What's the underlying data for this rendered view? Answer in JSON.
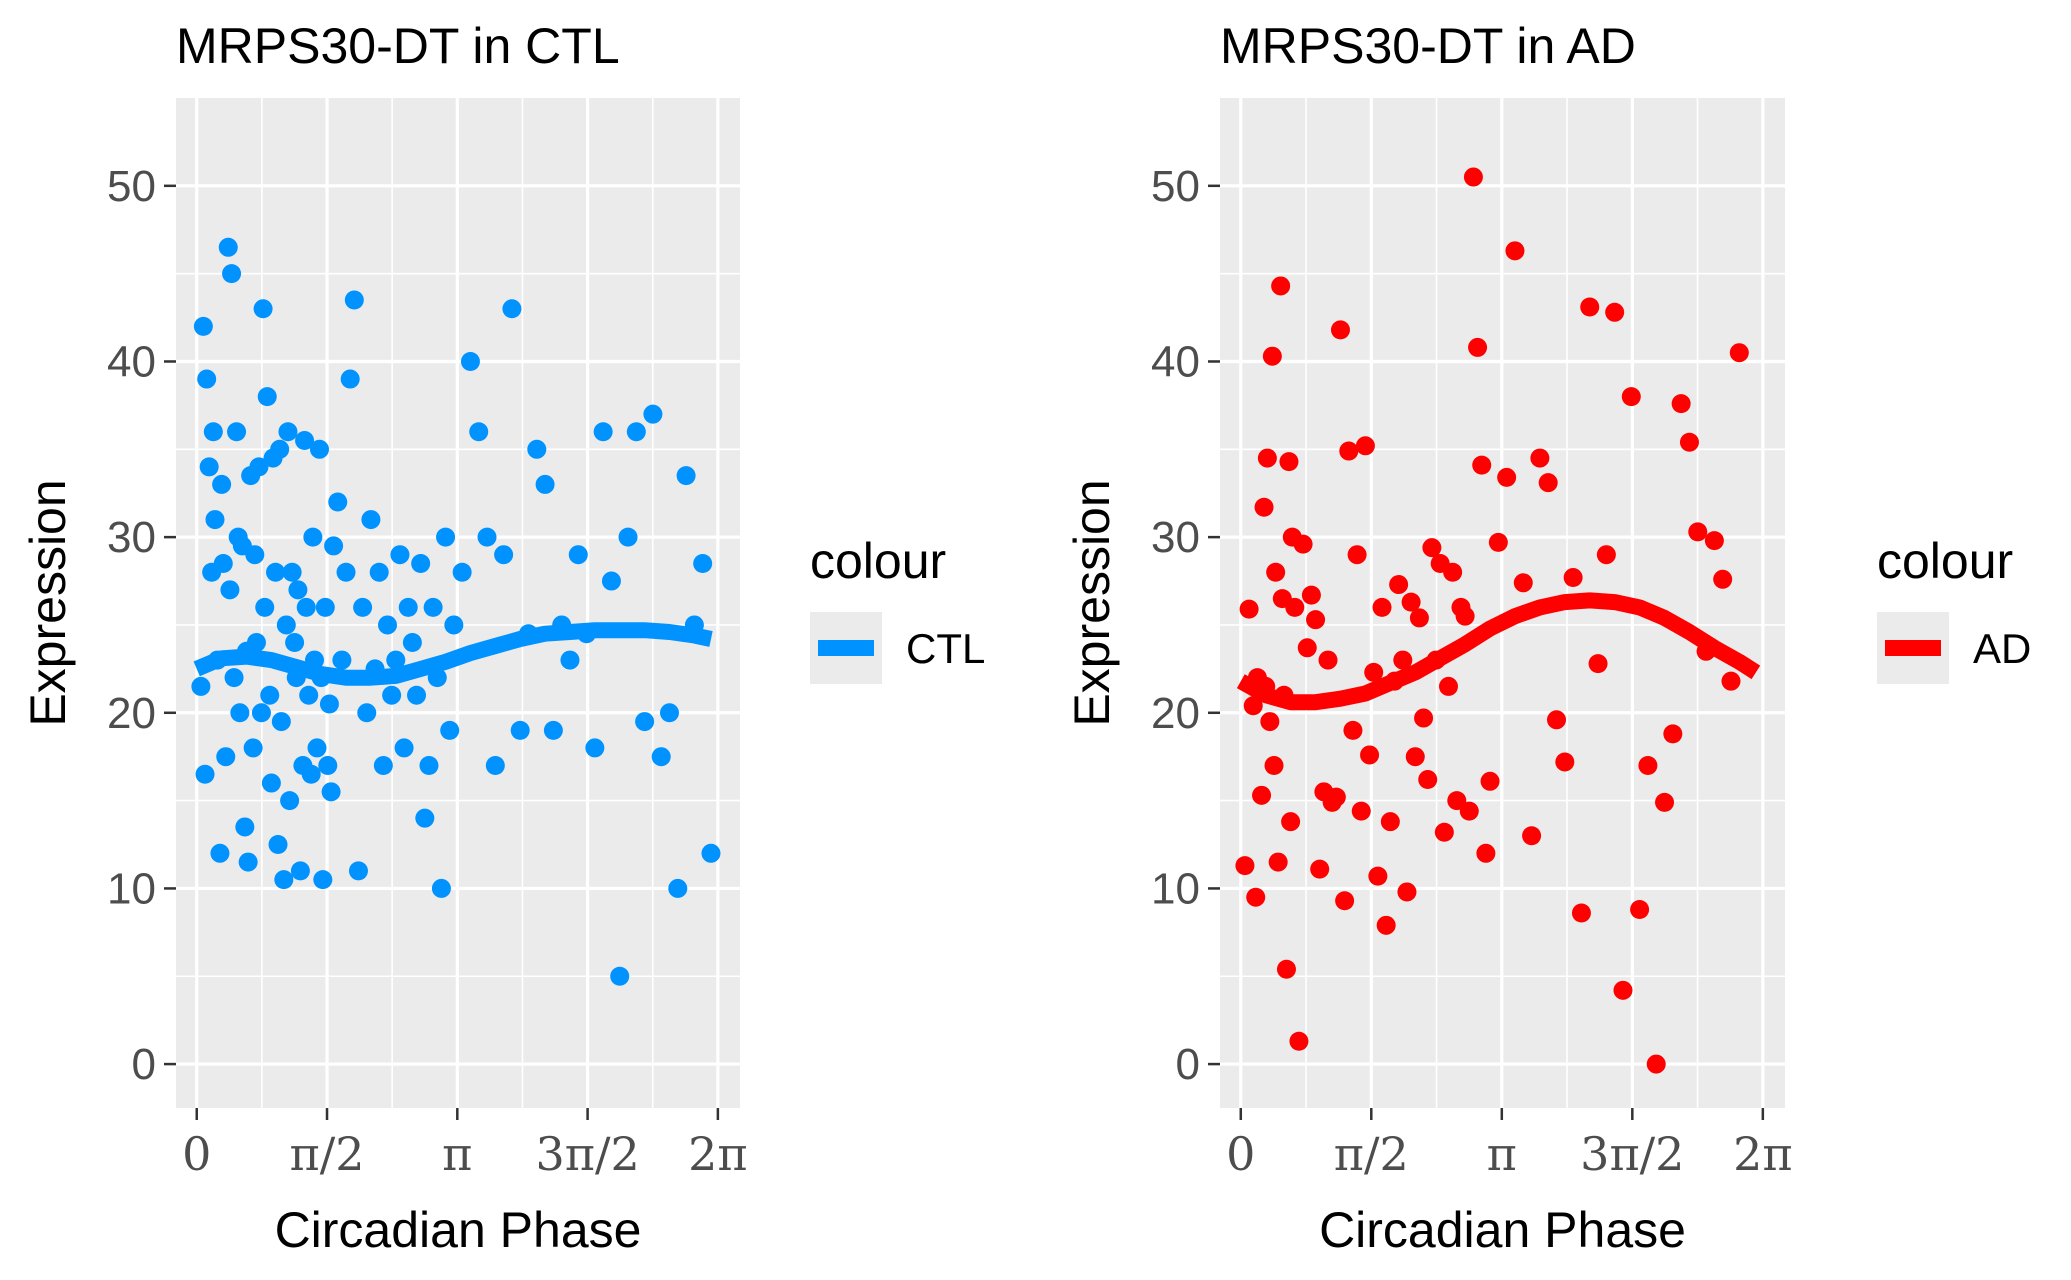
{
  "chart_data": [
    {
      "type": "scatter",
      "title": "MRPS30-DT in CTL",
      "xlabel": "Circadian Phase",
      "ylabel": "Expression",
      "x_tick_labels": [
        "0",
        "π/2",
        "π",
        "3π/2",
        "2π"
      ],
      "x_tick_values": [
        0,
        1.5708,
        3.1416,
        4.7124,
        6.2832
      ],
      "y_tick_labels": [
        "0",
        "10",
        "20",
        "30",
        "40",
        "50"
      ],
      "y_tick_values": [
        0,
        10,
        20,
        30,
        40,
        50
      ],
      "xlim": [
        -0.25,
        6.55
      ],
      "ylim": [
        -2.5,
        55.0
      ],
      "grid": true,
      "color": "#0092ff",
      "legend": {
        "title": "colour",
        "label": "CTL",
        "placement": "right"
      },
      "fit_line": {
        "x": [
          0.0,
          0.3,
          0.6,
          0.9,
          1.2,
          1.5,
          1.8,
          2.1,
          2.4,
          2.7,
          3.0,
          3.3,
          3.6,
          3.9,
          4.2,
          4.5,
          4.8,
          5.1,
          5.4,
          5.7,
          6.0,
          6.2
        ],
        "y": [
          22.5,
          23.1,
          23.2,
          23.0,
          22.6,
          22.2,
          22.0,
          22.0,
          22.1,
          22.5,
          22.9,
          23.4,
          23.8,
          24.2,
          24.5,
          24.6,
          24.7,
          24.7,
          24.7,
          24.6,
          24.4,
          24.2
        ]
      },
      "points": {
        "x": [
          0.05,
          0.08,
          0.1,
          0.12,
          0.15,
          0.18,
          0.2,
          0.22,
          0.25,
          0.28,
          0.3,
          0.32,
          0.35,
          0.38,
          0.4,
          0.42,
          0.45,
          0.48,
          0.5,
          0.52,
          0.55,
          0.58,
          0.6,
          0.62,
          0.65,
          0.68,
          0.7,
          0.72,
          0.75,
          0.78,
          0.8,
          0.82,
          0.85,
          0.88,
          0.9,
          0.92,
          0.95,
          0.98,
          1.0,
          1.02,
          1.05,
          1.08,
          1.1,
          1.12,
          1.15,
          1.18,
          1.2,
          1.22,
          1.25,
          1.28,
          1.3,
          1.32,
          1.35,
          1.38,
          1.4,
          1.42,
          1.45,
          1.48,
          1.5,
          1.52,
          1.55,
          1.58,
          1.6,
          1.62,
          1.65,
          1.7,
          1.75,
          1.8,
          1.85,
          1.9,
          1.95,
          2.0,
          2.05,
          2.1,
          2.15,
          2.2,
          2.25,
          2.3,
          2.35,
          2.4,
          2.45,
          2.5,
          2.55,
          2.6,
          2.65,
          2.7,
          2.75,
          2.8,
          2.85,
          2.9,
          2.95,
          3.0,
          3.05,
          3.1,
          3.2,
          3.3,
          3.4,
          3.5,
          3.6,
          3.7,
          3.8,
          3.9,
          4.0,
          4.1,
          4.2,
          4.3,
          4.4,
          4.5,
          4.6,
          4.7,
          4.8,
          4.9,
          5.0,
          5.1,
          5.2,
          5.3,
          5.4,
          5.5,
          5.6,
          5.7,
          5.8,
          5.9,
          6.0,
          6.1,
          6.2
        ],
        "y": [
          21.5,
          42.0,
          16.5,
          39.0,
          34.0,
          28.0,
          36.0,
          31.0,
          23.0,
          12.0,
          33.0,
          28.5,
          17.5,
          46.5,
          27.0,
          45.0,
          22.0,
          36.0,
          30.0,
          20.0,
          29.5,
          13.5,
          23.5,
          11.5,
          33.5,
          18.0,
          29.0,
          24.0,
          34.0,
          20.0,
          43.0,
          26.0,
          38.0,
          21.0,
          16.0,
          34.5,
          28.0,
          12.5,
          35.0,
          19.5,
          10.5,
          25.0,
          36.0,
          15.0,
          28.0,
          24.0,
          22.0,
          27.0,
          11.0,
          17.0,
          35.5,
          26.0,
          21.0,
          16.5,
          30.0,
          23.0,
          18.0,
          35.0,
          22.0,
          10.5,
          26.0,
          17.0,
          20.5,
          15.5,
          29.5,
          32.0,
          23.0,
          28.0,
          39.0,
          43.5,
          11.0,
          26.0,
          20.0,
          31.0,
          22.5,
          28.0,
          17.0,
          25.0,
          21.0,
          23.0,
          29.0,
          18.0,
          26.0,
          24.0,
          21.0,
          28.5,
          14.0,
          17.0,
          26.0,
          22.0,
          10.0,
          30.0,
          19.0,
          25.0,
          28.0,
          40.0,
          36.0,
          30.0,
          17.0,
          29.0,
          43.0,
          19.0,
          24.5,
          35.0,
          33.0,
          19.0,
          25.0,
          23.0,
          29.0,
          24.5,
          18.0,
          36.0,
          27.5,
          5.0,
          30.0,
          36.0,
          19.5,
          37.0,
          17.5,
          20.0,
          10.0,
          33.5,
          25.0,
          28.5,
          12.0
        ]
      }
    },
    {
      "type": "scatter",
      "title": "MRPS30-DT in AD",
      "xlabel": "Circadian Phase",
      "ylabel": "Expression",
      "x_tick_labels": [
        "0",
        "π/2",
        "π",
        "3π/2",
        "2π"
      ],
      "x_tick_values": [
        0,
        1.5708,
        3.1416,
        4.7124,
        6.2832
      ],
      "y_tick_labels": [
        "0",
        "10",
        "20",
        "30",
        "40",
        "50"
      ],
      "y_tick_values": [
        0,
        10,
        20,
        30,
        40,
        50
      ],
      "xlim": [
        -0.25,
        6.55
      ],
      "ylim": [
        -2.5,
        55.0
      ],
      "grid": true,
      "color": "#ff0000",
      "legend": {
        "title": "colour",
        "label": "AD",
        "placement": "right"
      },
      "fit_line": {
        "x": [
          0.0,
          0.3,
          0.6,
          0.9,
          1.2,
          1.5,
          1.8,
          2.1,
          2.4,
          2.7,
          3.0,
          3.3,
          3.6,
          3.9,
          4.2,
          4.5,
          4.8,
          5.1,
          5.4,
          5.7,
          6.0,
          6.2
        ],
        "y": [
          21.8,
          21.0,
          20.6,
          20.6,
          20.8,
          21.1,
          21.7,
          22.3,
          23.1,
          23.9,
          24.8,
          25.5,
          26.0,
          26.3,
          26.4,
          26.3,
          26.0,
          25.4,
          24.6,
          23.7,
          22.9,
          22.3
        ]
      },
      "points": {
        "x": [
          0.05,
          0.1,
          0.15,
          0.18,
          0.2,
          0.25,
          0.28,
          0.3,
          0.32,
          0.35,
          0.38,
          0.4,
          0.42,
          0.45,
          0.48,
          0.5,
          0.52,
          0.55,
          0.58,
          0.6,
          0.62,
          0.65,
          0.7,
          0.75,
          0.8,
          0.85,
          0.9,
          0.95,
          1.0,
          1.05,
          1.1,
          1.15,
          1.2,
          1.25,
          1.3,
          1.35,
          1.4,
          1.45,
          1.5,
          1.55,
          1.6,
          1.65,
          1.7,
          1.75,
          1.8,
          1.85,
          1.9,
          1.95,
          2.0,
          2.05,
          2.1,
          2.15,
          2.2,
          2.25,
          2.3,
          2.35,
          2.4,
          2.45,
          2.5,
          2.55,
          2.6,
          2.65,
          2.7,
          2.75,
          2.8,
          2.85,
          2.9,
          2.95,
          3.0,
          3.1,
          3.2,
          3.3,
          3.4,
          3.5,
          3.6,
          3.7,
          3.8,
          3.9,
          4.0,
          4.1,
          4.2,
          4.3,
          4.4,
          4.5,
          4.6,
          4.7,
          4.8,
          4.9,
          5.0,
          5.1,
          5.2,
          5.3,
          5.4,
          5.5,
          5.6,
          5.7,
          5.8,
          5.9,
          6.0
        ],
        "y": [
          11.3,
          25.9,
          20.4,
          9.5,
          22.0,
          15.3,
          31.7,
          21.5,
          34.5,
          19.5,
          40.3,
          17.0,
          28.0,
          11.5,
          44.3,
          26.5,
          21.0,
          5.4,
          34.3,
          13.8,
          30.0,
          26.0,
          1.3,
          29.6,
          23.7,
          26.7,
          25.3,
          11.1,
          15.5,
          23.0,
          14.9,
          15.2,
          41.8,
          9.3,
          34.9,
          19.0,
          29.0,
          14.4,
          35.2,
          17.6,
          22.3,
          10.7,
          26.0,
          7.9,
          13.8,
          21.8,
          27.3,
          23.0,
          9.8,
          26.3,
          17.5,
          25.4,
          19.7,
          16.2,
          29.4,
          23.0,
          28.5,
          13.2,
          21.5,
          28.0,
          15.0,
          26.0,
          25.5,
          14.4,
          50.5,
          40.8,
          34.1,
          12.0,
          16.1,
          29.7,
          33.4,
          46.3,
          27.4,
          13.0,
          34.5,
          33.1,
          19.6,
          17.2,
          27.7,
          8.6,
          43.1,
          22.8,
          29.0,
          42.8,
          4.2,
          38.0,
          8.8,
          17.0,
          0.0,
          14.9,
          18.8,
          37.6,
          35.4,
          30.3,
          23.5,
          29.8,
          27.6,
          21.8,
          40.5
        ]
      }
    }
  ]
}
